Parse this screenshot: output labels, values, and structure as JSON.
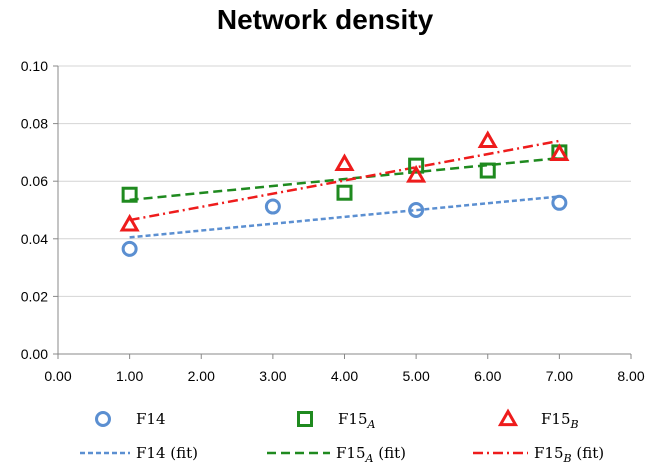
{
  "chart_data": {
    "type": "scatter",
    "title": "Network density",
    "xlabel": "",
    "ylabel": "",
    "xlim": [
      0,
      8
    ],
    "ylim": [
      0,
      0.1
    ],
    "xticks": [
      "0.00",
      "1.00",
      "2.00",
      "3.00",
      "4.00",
      "5.00",
      "6.00",
      "7.00",
      "8.00"
    ],
    "yticks": [
      "0.00",
      "0.02",
      "0.04",
      "0.06",
      "0.08",
      "0.10"
    ],
    "grid": "horizontal",
    "legend_position": "bottom",
    "series": [
      {
        "name": "F14",
        "sub": "",
        "marker": "circle",
        "color": "#5b8fd1",
        "x": [
          1,
          3,
          5,
          7
        ],
        "y": [
          0.0365,
          0.0512,
          0.05,
          0.0525
        ]
      },
      {
        "name": "F15",
        "sub": "A",
        "marker": "square",
        "color": "#1f8a1f",
        "x": [
          1,
          4,
          5,
          6,
          7
        ],
        "y": [
          0.0553,
          0.056,
          0.0654,
          0.0637,
          0.07
        ]
      },
      {
        "name": "F15",
        "sub": "B",
        "marker": "triangle",
        "color": "#ee1c1c",
        "x": [
          1,
          4,
          5,
          6,
          7
        ],
        "y": [
          0.045,
          0.066,
          0.062,
          0.074,
          0.0695
        ]
      }
    ],
    "fits": [
      {
        "name": "F14",
        "sub": "",
        "suffix": " (fit)",
        "color": "#5b8fd1",
        "dash": "dashed-fine",
        "x": [
          1,
          7
        ],
        "y": [
          0.0405,
          0.0547
        ]
      },
      {
        "name": "F15",
        "sub": "A",
        "suffix": " (fit)",
        "color": "#1f8a1f",
        "dash": "dashed",
        "x": [
          1,
          7
        ],
        "y": [
          0.0535,
          0.068
        ]
      },
      {
        "name": "F15",
        "sub": "B",
        "suffix": " (fit)",
        "color": "#ee1c1c",
        "dash": "dash-dot",
        "x": [
          1,
          7
        ],
        "y": [
          0.0465,
          0.074
        ]
      }
    ]
  }
}
